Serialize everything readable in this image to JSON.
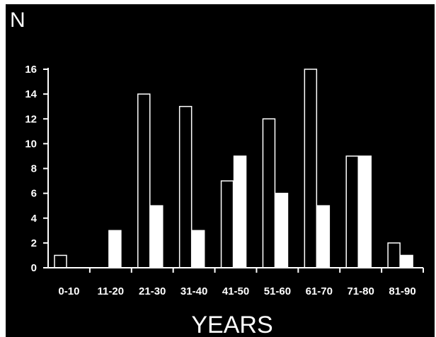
{
  "chart_data": {
    "type": "bar",
    "categories": [
      "0-10",
      "11-20",
      "21-30",
      "31-40",
      "41-50",
      "51-60",
      "61-70",
      "71-80",
      "81-90"
    ],
    "series": [
      {
        "style": "outlined",
        "values": [
          1,
          0,
          14,
          13,
          7,
          12,
          16,
          9,
          2
        ]
      },
      {
        "style": "filled",
        "values": [
          0,
          3,
          5,
          3,
          9,
          6,
          5,
          9,
          1
        ]
      }
    ],
    "title": "",
    "xlabel": "YEARS",
    "ylabel": "N",
    "ylim": [
      0,
      16
    ],
    "yticks": [
      "0",
      "2",
      "4",
      "6",
      "8",
      "10",
      "12",
      "14",
      "16"
    ],
    "grid": false,
    "legend": "none",
    "colors": {
      "background": "#000000",
      "foreground": "#ffffff",
      "outlined_fill": "#000000",
      "filled_fill": "#ffffff"
    }
  }
}
